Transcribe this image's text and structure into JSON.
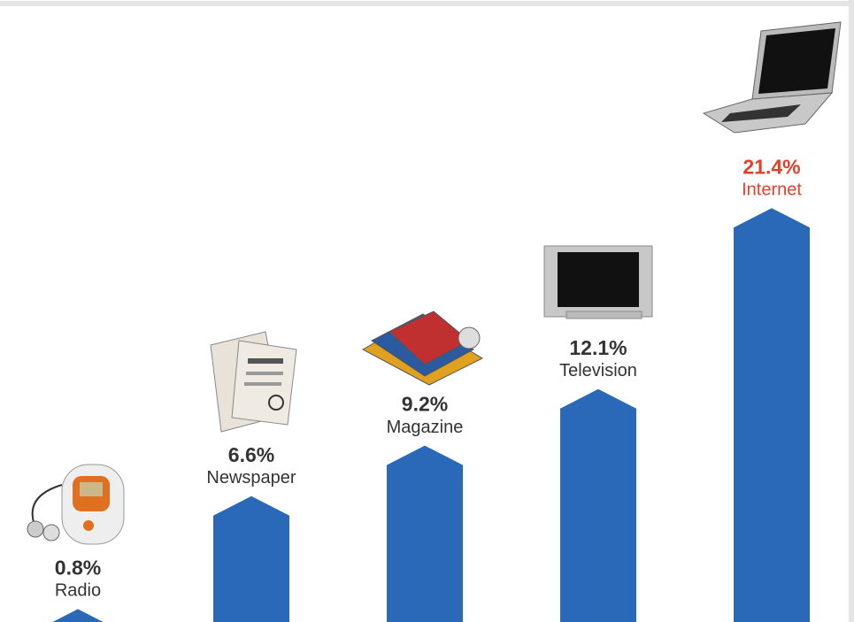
{
  "chart_data": {
    "type": "bar",
    "categories": [
      "Radio",
      "Newspaper",
      "Magazine",
      "Television",
      "Internet"
    ],
    "values": [
      0.8,
      6.6,
      9.2,
      12.1,
      21.4
    ],
    "value_labels": [
      "0.8%",
      "6.6%",
      "9.2%",
      "12.1%",
      "21.4%"
    ],
    "color": "#2a68b8",
    "label_colors": [
      "#333333",
      "#333333",
      "#333333",
      "#333333",
      "#e5402c"
    ],
    "ylim": [
      0,
      32
    ]
  }
}
